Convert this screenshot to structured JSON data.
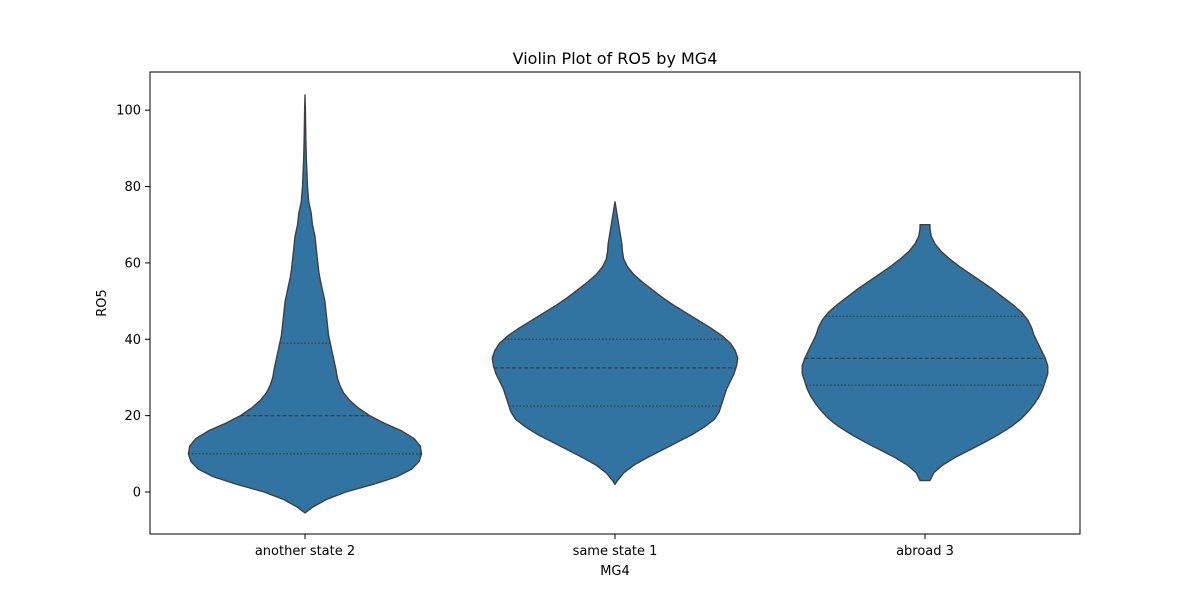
{
  "chart_data": {
    "type": "violin",
    "title": "Violin Plot of RO5 by MG4",
    "xlabel": "MG4",
    "ylabel": "RO5",
    "categories": [
      "another state 2",
      "same state 1",
      "abroad 3"
    ],
    "ylim": [
      -11,
      110
    ],
    "yticks": [
      0,
      20,
      40,
      60,
      80,
      100
    ],
    "grid": false,
    "color": "#3274a1",
    "edge_color": "#3f3f3f",
    "violins": [
      {
        "category": "another state 2",
        "min": -5.5,
        "max": 104,
        "q1": 10,
        "median": 20,
        "q3": 39,
        "density": [
          [
            -5.5,
            0.0
          ],
          [
            -4,
            0.06
          ],
          [
            -2,
            0.17
          ],
          [
            0,
            0.33
          ],
          [
            2,
            0.55
          ],
          [
            4,
            0.74
          ],
          [
            6,
            0.86
          ],
          [
            8,
            0.92
          ],
          [
            10,
            0.94
          ],
          [
            12,
            0.93
          ],
          [
            14,
            0.88
          ],
          [
            16,
            0.78
          ],
          [
            18,
            0.64
          ],
          [
            20,
            0.52
          ],
          [
            22,
            0.43
          ],
          [
            24,
            0.36
          ],
          [
            26,
            0.31
          ],
          [
            28,
            0.28
          ],
          [
            30,
            0.26
          ],
          [
            32,
            0.25
          ],
          [
            35,
            0.23
          ],
          [
            38,
            0.21
          ],
          [
            41,
            0.19
          ],
          [
            44,
            0.18
          ],
          [
            47,
            0.17
          ],
          [
            50,
            0.16
          ],
          [
            53,
            0.14
          ],
          [
            56,
            0.12
          ],
          [
            58,
            0.11
          ],
          [
            61,
            0.1
          ],
          [
            64,
            0.09
          ],
          [
            67,
            0.08
          ],
          [
            70,
            0.06
          ],
          [
            73,
            0.05
          ],
          [
            76,
            0.03
          ],
          [
            80,
            0.02
          ],
          [
            84,
            0.015
          ],
          [
            88,
            0.01
          ],
          [
            92,
            0.007
          ],
          [
            96,
            0.005
          ],
          [
            100,
            0.003
          ],
          [
            104,
            0.0
          ]
        ]
      },
      {
        "category": "same state 1",
        "min": 2,
        "max": 76,
        "q1": 22.5,
        "median": 32.5,
        "q3": 40,
        "density": [
          [
            2,
            0.0
          ],
          [
            3,
            0.02
          ],
          [
            5,
            0.07
          ],
          [
            7,
            0.15
          ],
          [
            9,
            0.26
          ],
          [
            11,
            0.38
          ],
          [
            13,
            0.5
          ],
          [
            15,
            0.62
          ],
          [
            17,
            0.72
          ],
          [
            19,
            0.8
          ],
          [
            21,
            0.84
          ],
          [
            23,
            0.86
          ],
          [
            25,
            0.88
          ],
          [
            27,
            0.9
          ],
          [
            29,
            0.93
          ],
          [
            31,
            0.96
          ],
          [
            33,
            0.98
          ],
          [
            35,
            0.99
          ],
          [
            37,
            0.97
          ],
          [
            39,
            0.93
          ],
          [
            41,
            0.86
          ],
          [
            43,
            0.77
          ],
          [
            45,
            0.67
          ],
          [
            47,
            0.57
          ],
          [
            49,
            0.47
          ],
          [
            51,
            0.38
          ],
          [
            53,
            0.3
          ],
          [
            55,
            0.22
          ],
          [
            57,
            0.15
          ],
          [
            59,
            0.1
          ],
          [
            61,
            0.07
          ],
          [
            63,
            0.06
          ],
          [
            65,
            0.055
          ],
          [
            67,
            0.045
          ],
          [
            69,
            0.035
          ],
          [
            71,
            0.025
          ],
          [
            73,
            0.015
          ],
          [
            75,
            0.005
          ],
          [
            76,
            0.0
          ]
        ]
      },
      {
        "category": "abroad 3",
        "min": 3,
        "max": 70,
        "q1": 28,
        "median": 35,
        "q3": 46,
        "density": [
          [
            3,
            0.04
          ],
          [
            5,
            0.07
          ],
          [
            7,
            0.14
          ],
          [
            9,
            0.24
          ],
          [
            11,
            0.36
          ],
          [
            13,
            0.48
          ],
          [
            15,
            0.59
          ],
          [
            17,
            0.69
          ],
          [
            19,
            0.77
          ],
          [
            21,
            0.83
          ],
          [
            23,
            0.88
          ],
          [
            25,
            0.92
          ],
          [
            27,
            0.95
          ],
          [
            29,
            0.97
          ],
          [
            31,
            0.99
          ],
          [
            33,
            0.99
          ],
          [
            35,
            0.97
          ],
          [
            37,
            0.94
          ],
          [
            39,
            0.91
          ],
          [
            41,
            0.88
          ],
          [
            43,
            0.86
          ],
          [
            45,
            0.83
          ],
          [
            47,
            0.78
          ],
          [
            49,
            0.71
          ],
          [
            51,
            0.63
          ],
          [
            53,
            0.55
          ],
          [
            55,
            0.46
          ],
          [
            57,
            0.37
          ],
          [
            59,
            0.28
          ],
          [
            61,
            0.2
          ],
          [
            63,
            0.13
          ],
          [
            65,
            0.08
          ],
          [
            67,
            0.05
          ],
          [
            69,
            0.04
          ],
          [
            70,
            0.04
          ]
        ]
      }
    ]
  }
}
